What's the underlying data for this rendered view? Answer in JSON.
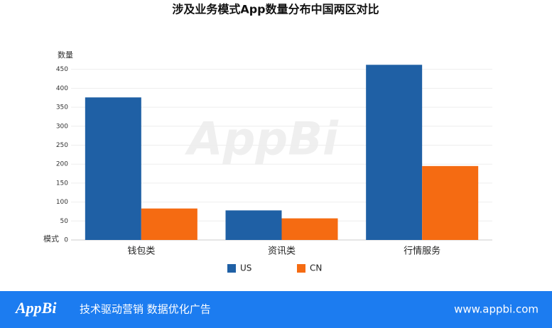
{
  "chart_data": {
    "type": "bar",
    "title": "涉及业务模式App数量分布中国两区对比",
    "y_label": "数量",
    "x_label": "模式",
    "watermark": "AppBi",
    "categories": [
      "钱包类",
      "资讯类",
      "行情服务"
    ],
    "series": [
      {
        "name": "US",
        "color": "#1f60a5",
        "values": [
          376,
          78,
          462
        ]
      },
      {
        "name": "CN",
        "color": "#f56b12",
        "values": [
          83,
          57,
          195
        ]
      }
    ],
    "ylim": [
      0,
      470
    ],
    "yticks": [
      0,
      50,
      100,
      150,
      200,
      250,
      300,
      350,
      400,
      450
    ],
    "grid": true,
    "legend": "bottom"
  },
  "footer": {
    "logo": "AppBi",
    "slogan": "技术驱动营销 数据优化广告",
    "url": "www.appbi.com"
  }
}
